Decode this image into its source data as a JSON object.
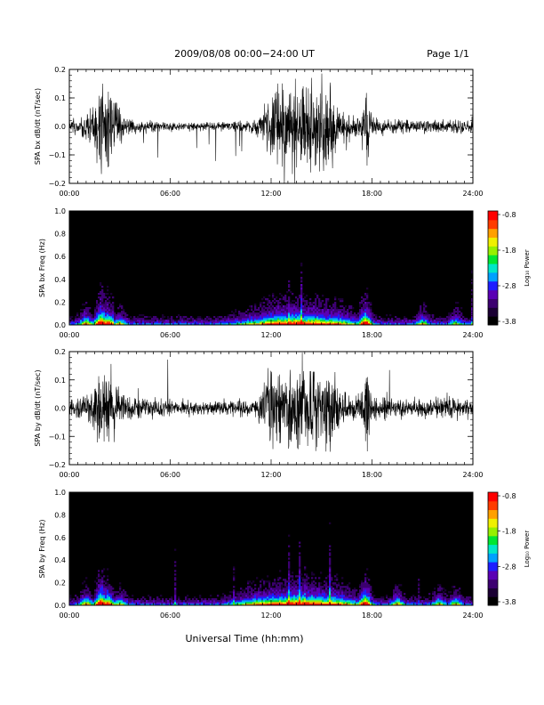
{
  "header": {
    "title": "2009/08/08  00:00−24:00 UT",
    "page": "Page 1/1"
  },
  "footer": {
    "xlabel": "Universal Time (hh:mm)"
  },
  "colorbar": {
    "label": "Log₁₀ Power",
    "ticks": [
      "-0.8",
      "-1.8",
      "-2.8",
      "-3.8"
    ],
    "colors": [
      "#000000",
      "#1a0033",
      "#3c0070",
      "#5a00b4",
      "#1e1eff",
      "#00a0ff",
      "#00e6c8",
      "#00e632",
      "#96f000",
      "#f0f000",
      "#ffa000",
      "#ff3c00",
      "#ff0000"
    ]
  },
  "chart_data": [
    {
      "type": "line",
      "name": "panel-bx-wave",
      "ylabel": "SPA bx dB/dt (nT/sec)",
      "ylim": [
        -0.2,
        0.2
      ],
      "yticks": [
        "0.2",
        "0.1",
        "0.0",
        "−0.1",
        "−0.2"
      ],
      "xlim": [
        "00:00",
        "24:00"
      ],
      "xticks": [
        "00:00",
        "06:00",
        "12:00",
        "18:00",
        "24:00"
      ],
      "envelope_hours": [
        0,
        0.5,
        1.0,
        1.5,
        1.8,
        2.3,
        2.8,
        3.3,
        4.5,
        6,
        8,
        10,
        11.0,
        11.5,
        12.2,
        12.8,
        13.5,
        14.5,
        15.5,
        16.0,
        16.5,
        17.3,
        17.7,
        18.0,
        19,
        20,
        22,
        23,
        24
      ],
      "envelope_amplitude": [
        0.03,
        0.035,
        0.05,
        0.1,
        0.2,
        0.2,
        0.1,
        0.04,
        0.025,
        0.02,
        0.018,
        0.02,
        0.03,
        0.06,
        0.18,
        0.2,
        0.2,
        0.2,
        0.19,
        0.08,
        0.05,
        0.06,
        0.2,
        0.04,
        0.035,
        0.03,
        0.025,
        0.03,
        0.025
      ]
    },
    {
      "type": "heatmap",
      "name": "panel-bx-spectrogram",
      "ylabel": "SPA bx Freq (Hz)",
      "ylim": [
        0.0,
        1.0
      ],
      "yticks": [
        "1.0",
        "0.8",
        "0.6",
        "0.4",
        "0.2",
        "0.0"
      ],
      "xlim": [
        "00:00",
        "24:00"
      ],
      "xticks": [
        "00:00",
        "06:00",
        "12:00",
        "18:00",
        "24:00"
      ],
      "zlim": [
        -3.8,
        -0.8
      ],
      "activity_hours": [
        1.0,
        1.9,
        2.3,
        3.0,
        11.5,
        12.5,
        13.5,
        14.5,
        15.5,
        17.6,
        21.0,
        23.0
      ],
      "activity_strength": [
        0.45,
        0.95,
        0.7,
        0.35,
        0.35,
        0.6,
        0.65,
        0.6,
        0.5,
        0.8,
        0.35,
        0.3
      ]
    },
    {
      "type": "line",
      "name": "panel-by-wave",
      "ylabel": "SPA by dB/dt (nT/sec)",
      "ylim": [
        -0.2,
        0.2
      ],
      "yticks": [
        "0.2",
        "0.1",
        "0.0",
        "−0.1",
        "−0.2"
      ],
      "xlim": [
        "00:00",
        "24:00"
      ],
      "xticks": [
        "00:00",
        "06:00",
        "12:00",
        "18:00",
        "24:00"
      ],
      "envelope_hours": [
        0,
        0.5,
        1.0,
        1.5,
        1.8,
        2.3,
        2.8,
        3.3,
        4.5,
        6,
        8,
        10,
        11.0,
        11.5,
        12.0,
        12.8,
        13.5,
        14.5,
        15.5,
        16.0,
        16.5,
        17.3,
        17.7,
        18.0,
        19,
        20,
        22,
        23,
        24
      ],
      "envelope_amplitude": [
        0.04,
        0.05,
        0.07,
        0.12,
        0.2,
        0.2,
        0.12,
        0.06,
        0.04,
        0.035,
        0.03,
        0.035,
        0.05,
        0.1,
        0.2,
        0.15,
        0.2,
        0.2,
        0.2,
        0.1,
        0.06,
        0.07,
        0.2,
        0.05,
        0.045,
        0.04,
        0.04,
        0.045,
        0.04
      ]
    },
    {
      "type": "heatmap",
      "name": "panel-by-spectrogram",
      "ylabel": "SPA by Freq (Hz)",
      "ylim": [
        0.0,
        1.0
      ],
      "yticks": [
        "1.0",
        "0.8",
        "0.6",
        "0.4",
        "0.2",
        "0.0"
      ],
      "xlim": [
        "00:00",
        "24:00"
      ],
      "xticks": [
        "00:00",
        "06:00",
        "12:00",
        "18:00",
        "24:00"
      ],
      "zlim": [
        -3.8,
        -0.8
      ],
      "activity_hours": [
        1.0,
        1.9,
        2.3,
        3.0,
        11.5,
        12.5,
        13.5,
        14.5,
        15.5,
        17.6,
        19.5,
        22.0,
        23.0
      ],
      "activity_strength": [
        0.45,
        0.95,
        0.7,
        0.35,
        0.45,
        0.6,
        0.7,
        0.65,
        0.55,
        0.8,
        0.4,
        0.35,
        0.35
      ]
    }
  ]
}
